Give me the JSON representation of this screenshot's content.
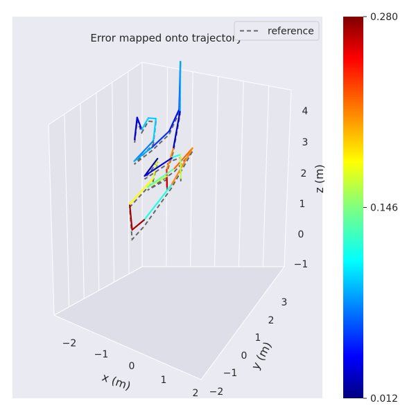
{
  "chart_data": {
    "type": "line",
    "projection": "3d",
    "title": "Error mapped onto trajectory",
    "xlabel": "x (m)",
    "ylabel": "y (m)",
    "zlabel": "z (m)",
    "x_ticks": [
      "−2",
      "−1",
      "0",
      "1",
      "2"
    ],
    "y_ticks": [
      "−2",
      "−1",
      "0",
      "1",
      "2",
      "3"
    ],
    "z_ticks": [
      "−1",
      "0",
      "1",
      "2",
      "3",
      "4"
    ],
    "xlim": [
      -2.6,
      2.2
    ],
    "ylim": [
      -2.4,
      3.6
    ],
    "zlim": [
      -1.3,
      4.6
    ],
    "grid": true,
    "legend": {
      "placement": "top-right",
      "entries": [
        {
          "label": "reference",
          "style": "dashed",
          "color": "#666666"
        }
      ]
    },
    "colorbar": {
      "colormap": "jet",
      "min_label": "0.012",
      "mid_label": "0.146",
      "max_label": "0.280",
      "min": 0.012,
      "max": 0.28
    },
    "series": [
      {
        "role": "reference",
        "color": "#666666",
        "points": [
          [
            -1.9,
            2.3,
            0.6
          ],
          [
            -1.6,
            2.0,
            1.5
          ],
          [
            -1.3,
            1.8,
            1.3
          ],
          [
            -1.5,
            2.4,
            1.4
          ],
          [
            -1.1,
            2.2,
            1.6
          ],
          [
            -0.9,
            1.8,
            1.1
          ],
          [
            -1.2,
            1.3,
            0.5
          ],
          [
            -0.8,
            1.6,
            1.0
          ],
          [
            -0.5,
            2.0,
            1.5
          ],
          [
            -0.3,
            2.2,
            2.2
          ],
          [
            -0.4,
            2.4,
            3.6
          ],
          [
            -0.2,
            2.1,
            2.2
          ],
          [
            0.0,
            1.5,
            1.3
          ],
          [
            0.2,
            0.9,
            0.9
          ],
          [
            0.5,
            0.5,
            0.6
          ],
          [
            0.7,
            0.2,
            1.1
          ],
          [
            0.4,
            -0.3,
            0.8
          ],
          [
            0.9,
            0.3,
            1.4
          ],
          [
            1.3,
            0.6,
            2.1
          ],
          [
            1.0,
            0.0,
            1.0
          ],
          [
            0.5,
            -0.6,
            -0.2
          ],
          [
            0.3,
            -0.9,
            -0.6
          ],
          [
            0.0,
            -0.6,
            0.2
          ],
          [
            0.3,
            0.1,
            0.9
          ],
          [
            0.1,
            0.6,
            1.3
          ],
          [
            -0.2,
            0.4,
            0.7
          ],
          [
            0.2,
            1.2,
            1.2
          ],
          [
            0.6,
            1.0,
            1.5
          ],
          [
            0.9,
            0.6,
            1.0
          ]
        ]
      },
      {
        "role": "trajectory",
        "points": [
          [
            -1.9,
            2.3,
            0.7,
            0.03
          ],
          [
            -1.6,
            2.0,
            1.6,
            0.04
          ],
          [
            -1.3,
            1.8,
            1.4,
            0.1
          ],
          [
            -1.5,
            2.4,
            1.5,
            0.1
          ],
          [
            -1.1,
            2.2,
            1.7,
            0.1
          ],
          [
            -0.9,
            1.8,
            1.2,
            0.08
          ],
          [
            -1.2,
            1.3,
            0.6,
            0.09
          ],
          [
            -0.8,
            1.6,
            1.1,
            0.06
          ],
          [
            -0.5,
            2.0,
            1.6,
            0.05
          ],
          [
            -0.3,
            2.2,
            2.3,
            0.06
          ],
          [
            -0.4,
            2.4,
            3.7,
            0.09
          ],
          [
            -0.2,
            2.1,
            2.3,
            0.03
          ],
          [
            0.0,
            1.5,
            1.4,
            0.21
          ],
          [
            0.2,
            0.9,
            1.0,
            0.24
          ],
          [
            0.5,
            0.5,
            0.7,
            0.26
          ],
          [
            0.7,
            0.2,
            1.2,
            0.16
          ],
          [
            0.4,
            -0.3,
            0.9,
            0.14
          ],
          [
            0.9,
            0.3,
            1.5,
            0.22
          ],
          [
            1.3,
            0.6,
            2.2,
            0.21
          ],
          [
            1.0,
            0.0,
            1.1,
            0.12
          ],
          [
            0.5,
            -0.6,
            0.0,
            0.27
          ],
          [
            0.3,
            -0.9,
            -0.3,
            0.27
          ],
          [
            0.0,
            -0.6,
            0.3,
            0.18
          ],
          [
            0.3,
            0.1,
            1.0,
            0.17
          ],
          [
            0.1,
            0.6,
            1.4,
            0.02
          ],
          [
            -0.2,
            0.4,
            0.8,
            0.04
          ],
          [
            0.2,
            1.2,
            1.3,
            0.12
          ],
          [
            0.6,
            1.0,
            1.6,
            0.16
          ],
          [
            0.9,
            0.6,
            1.1,
            0.11
          ]
        ]
      }
    ]
  }
}
